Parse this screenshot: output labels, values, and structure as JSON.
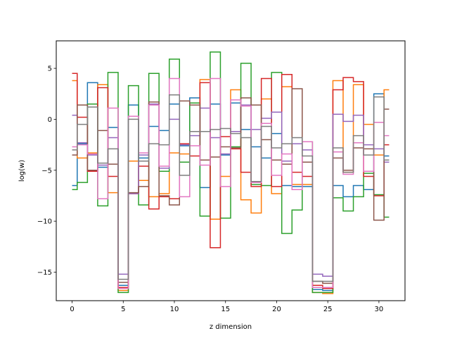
{
  "chart_data": {
    "type": "line",
    "step": "mid",
    "title": "",
    "xlabel": "z dimension",
    "ylabel": "log(w)",
    "xlim": [
      -1.55,
      32.55
    ],
    "ylim": [
      -17.8,
      7.7
    ],
    "xticks": [
      0,
      5,
      10,
      15,
      20,
      25,
      30
    ],
    "yticks": [
      5,
      0,
      -5,
      -10,
      -15
    ],
    "ytick_labels": [
      "5",
      "0",
      "−5",
      "−10",
      "−15"
    ],
    "grid": false,
    "legend": "none",
    "x": [
      0,
      1,
      2,
      3,
      4,
      5,
      6,
      7,
      8,
      9,
      10,
      11,
      12,
      13,
      14,
      15,
      16,
      17,
      18,
      19,
      20,
      21,
      22,
      23,
      24,
      25,
      26,
      27,
      28,
      29,
      30,
      31
    ],
    "series": [
      {
        "color": "#1f77b4",
        "values": [
          -6.5,
          -2.4,
          3.6,
          -4.7,
          -0.8,
          -16.3,
          1.4,
          -3.8,
          -0.7,
          -1.1,
          1.5,
          -2.6,
          2.1,
          -6.7,
          1.5,
          -3.5,
          1.6,
          -1.0,
          -2.7,
          -3.8,
          -1.4,
          -6.5,
          -6.6,
          -6.6,
          -16.7,
          -16.8,
          -6.5,
          -7.6,
          -6.5,
          -6.9,
          2.5,
          -3.6
        ]
      },
      {
        "color": "#ff7f0e",
        "values": [
          3.8,
          -3.8,
          -3.3,
          3.4,
          -7.2,
          -16.8,
          -4.1,
          -6.0,
          -7.6,
          -7.3,
          -3.3,
          -3.4,
          -1.2,
          3.9,
          -9.8,
          -5.6,
          2.9,
          -7.9,
          -9.2,
          2.0,
          -7.3,
          3.2,
          -6.4,
          -6.4,
          -17.0,
          -17.1,
          3.8,
          -5.2,
          3.4,
          -0.5,
          -3.5,
          2.9
        ]
      },
      {
        "color": "#2ca02c",
        "values": [
          -6.9,
          -6.2,
          1.5,
          -8.5,
          4.6,
          -17.0,
          3.3,
          -8.4,
          4.5,
          -5.1,
          5.9,
          -4.2,
          1.6,
          -9.5,
          6.6,
          -9.7,
          -2.7,
          5.5,
          -6.4,
          -6.5,
          4.6,
          -11.2,
          -8.9,
          -2.2,
          -17.0,
          -17.0,
          -7.7,
          -9.0,
          -7.6,
          -5.3,
          -7.4,
          -9.6
        ]
      },
      {
        "color": "#d62728",
        "values": [
          4.5,
          0.2,
          -5.1,
          3.1,
          -5.6,
          -16.5,
          -7.3,
          -4.6,
          -8.8,
          -7.6,
          -7.8,
          -2.4,
          -3.6,
          3.6,
          -12.6,
          -1.7,
          -2.9,
          -5.2,
          -6.6,
          4.0,
          -6.6,
          4.4,
          -5.2,
          -5.6,
          -16.3,
          -16.6,
          2.9,
          4.1,
          3.7,
          -5.6,
          -7.5,
          -2.5
        ]
      },
      {
        "color": "#9467bd",
        "values": [
          0.4,
          -2.3,
          -3.5,
          -4.5,
          -1.8,
          -15.2,
          -7.3,
          -3.5,
          1.5,
          -4.8,
          0.0,
          -2.5,
          -1.6,
          1.1,
          -1.8,
          -3.4,
          -1.2,
          1.4,
          -1.0,
          0.1,
          0.7,
          -4.1,
          -2.4,
          -3.0,
          -15.2,
          -15.4,
          0.5,
          -0.2,
          0.4,
          -2.5,
          -2.9,
          -4.2
        ]
      },
      {
        "color": "#8c564b",
        "values": [
          -3.5,
          1.4,
          -5.0,
          -1.1,
          -4.4,
          -16.0,
          -7.2,
          -6.6,
          1.7,
          -7.5,
          -8.4,
          1.8,
          1.4,
          -4.0,
          -3.7,
          -2.7,
          -2.8,
          2.1,
          1.4,
          -2.0,
          -4.0,
          -4.4,
          3.0,
          -4.2,
          -15.9,
          -16.1,
          -3.8,
          -5.0,
          -2.8,
          -2.9,
          -9.9,
          1.0
        ]
      },
      {
        "color": "#e377c2",
        "values": [
          -2.7,
          -2.5,
          -3.4,
          -7.8,
          1.1,
          -16.6,
          0.3,
          -3.3,
          1.4,
          -4.6,
          4.0,
          -7.6,
          -2.6,
          -4.5,
          4.0,
          -6.6,
          1.9,
          1.3,
          -6.2,
          -0.4,
          -5.5,
          -3.4,
          -6.9,
          -2.2,
          -16.5,
          -16.5,
          -3.2,
          -5.4,
          -2.3,
          -5.1,
          -0.3,
          -1.6
        ]
      },
      {
        "color": "#7f7f7f",
        "values": [
          -3.0,
          -0.5,
          1.2,
          -4.3,
          -2.9,
          -15.7,
          0.0,
          -4.1,
          -2.4,
          -2.5,
          2.4,
          -5.5,
          -1.2,
          -1.2,
          -1.0,
          -0.9,
          -1.4,
          -1.8,
          -6.1,
          -0.7,
          -2.8,
          -2.4,
          -1.8,
          -3.6,
          -15.9,
          -15.9,
          -2.8,
          -5.2,
          -1.6,
          -3.5,
          2.2,
          -4.0
        ]
      }
    ]
  }
}
